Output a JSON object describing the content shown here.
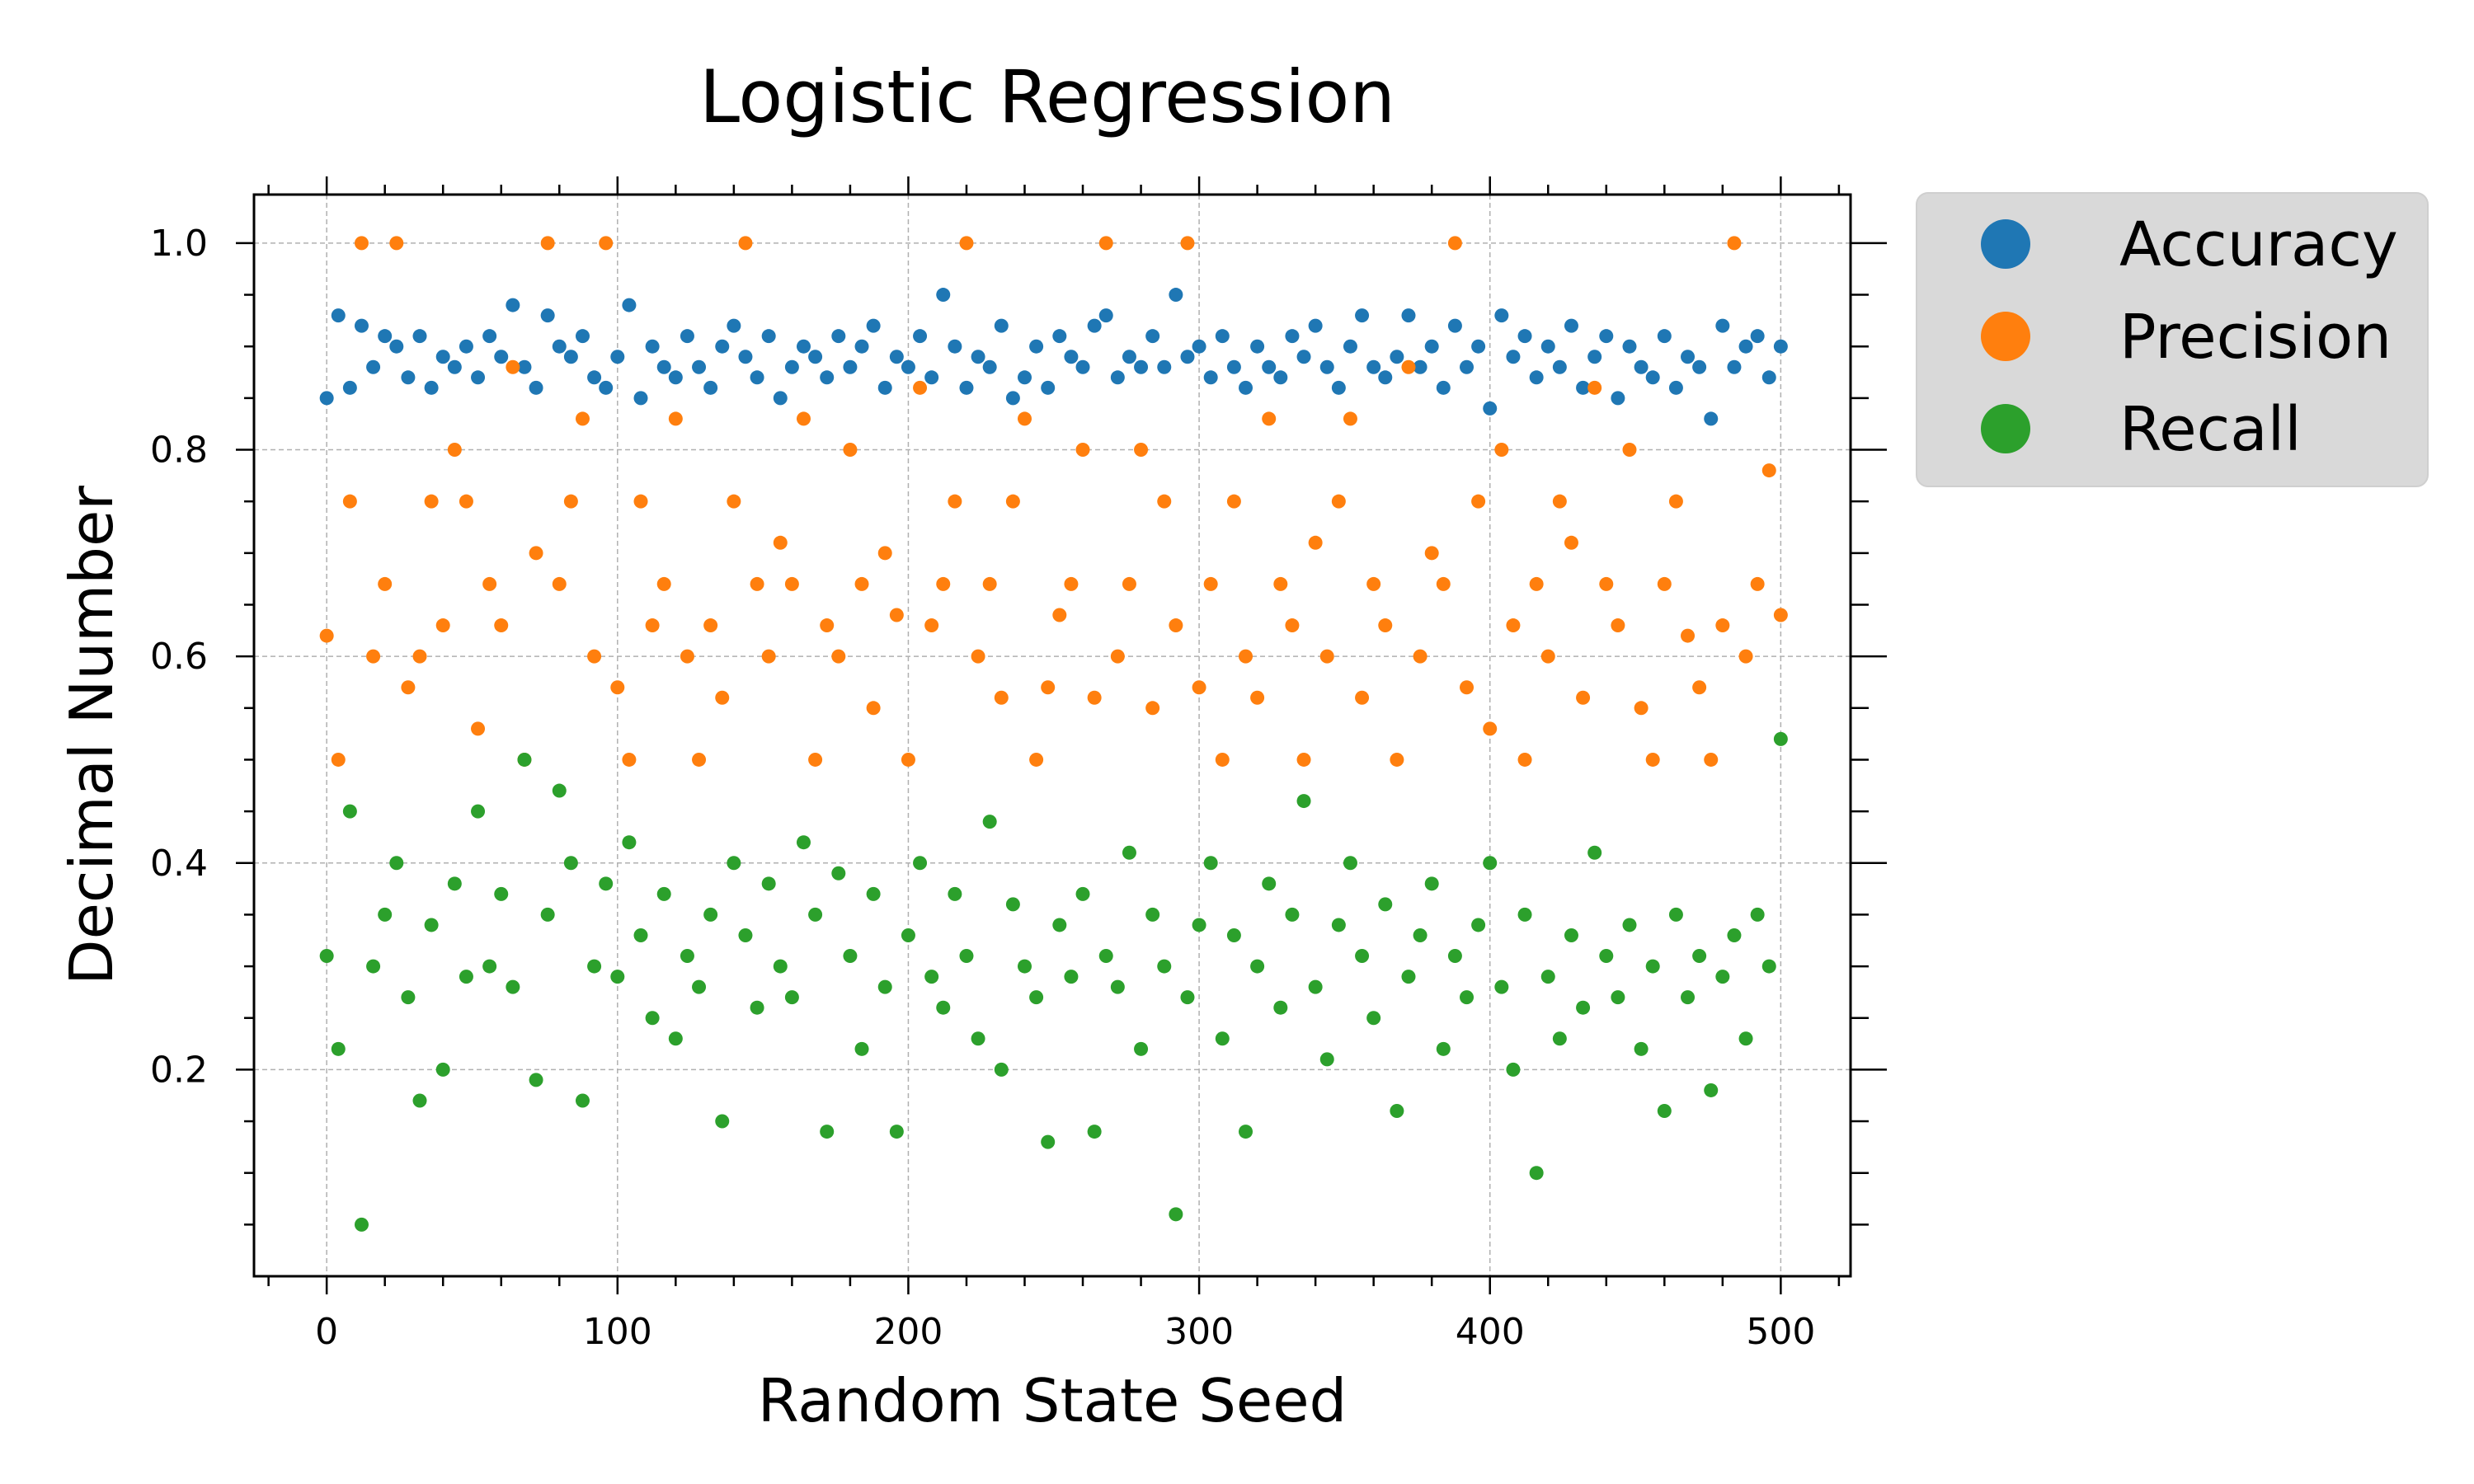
{
  "chart_data": {
    "type": "scatter",
    "title": "Logistic Regression",
    "xlabel": "Random State Seed",
    "ylabel": "Decimal Number",
    "xlim": [
      -25,
      524
    ],
    "ylim": [
      0.0,
      1.047
    ],
    "x_ticks": [
      0,
      100,
      200,
      300,
      400,
      500
    ],
    "x_tick_labels": [
      "0",
      "100",
      "200",
      "300",
      "400",
      "500"
    ],
    "y_ticks": [
      0.2,
      0.4,
      0.6,
      0.8,
      1.0
    ],
    "y_tick_labels": [
      "0.2",
      "0.4",
      "0.6",
      "0.8",
      "1.0"
    ],
    "grid": true,
    "legend_position": "outside-right-top",
    "x": [
      0,
      4,
      8,
      12,
      16,
      20,
      24,
      28,
      32,
      36,
      40,
      44,
      48,
      52,
      56,
      60,
      64,
      68,
      72,
      76,
      80,
      84,
      88,
      92,
      96,
      100,
      104,
      108,
      112,
      116,
      120,
      124,
      128,
      132,
      136,
      140,
      144,
      148,
      152,
      156,
      160,
      164,
      168,
      172,
      176,
      180,
      184,
      188,
      192,
      196,
      200,
      204,
      208,
      212,
      216,
      220,
      224,
      228,
      232,
      236,
      240,
      244,
      248,
      252,
      256,
      260,
      264,
      268,
      272,
      276,
      280,
      284,
      288,
      292,
      296,
      300,
      304,
      308,
      312,
      316,
      320,
      324,
      328,
      332,
      336,
      340,
      344,
      348,
      352,
      356,
      360,
      364,
      368,
      372,
      376,
      380,
      384,
      388,
      392,
      396,
      400,
      404,
      408,
      412,
      416,
      420,
      424,
      428,
      432,
      436,
      440,
      444,
      448,
      452,
      456,
      460,
      464,
      468,
      472,
      476,
      480,
      484,
      488,
      492,
      496,
      500
    ],
    "series": [
      {
        "name": "Accuracy",
        "color": "#1f77b4",
        "values": [
          0.85,
          0.93,
          0.86,
          0.92,
          0.88,
          0.91,
          0.9,
          0.87,
          0.91,
          0.86,
          0.89,
          0.88,
          0.9,
          0.87,
          0.91,
          0.89,
          0.94,
          0.88,
          0.86,
          0.93,
          0.9,
          0.89,
          0.91,
          0.87,
          0.86,
          0.89,
          0.94,
          0.85,
          0.9,
          0.88,
          0.87,
          0.91,
          0.88,
          0.86,
          0.9,
          0.92,
          0.89,
          0.87,
          0.91,
          0.85,
          0.88,
          0.9,
          0.89,
          0.87,
          0.91,
          0.88,
          0.9,
          0.92,
          0.86,
          0.89,
          0.88,
          0.91,
          0.87,
          0.95,
          0.9,
          0.86,
          0.89,
          0.88,
          0.92,
          0.85,
          0.87,
          0.9,
          0.86,
          0.91,
          0.89,
          0.88,
          0.92,
          0.93,
          0.87,
          0.89,
          0.88,
          0.91,
          0.88,
          0.95,
          0.89,
          0.9,
          0.87,
          0.91,
          0.88,
          0.86,
          0.9,
          0.88,
          0.87,
          0.91,
          0.89,
          0.92,
          0.88,
          0.86,
          0.9,
          0.93,
          0.88,
          0.87,
          0.89,
          0.93,
          0.88,
          0.9,
          0.86,
          0.92,
          0.88,
          0.9,
          0.84,
          0.93,
          0.89,
          0.91,
          0.87,
          0.9,
          0.88,
          0.92,
          0.86,
          0.89,
          0.91,
          0.85,
          0.9,
          0.88,
          0.87,
          0.91,
          0.86,
          0.89,
          0.88,
          0.83,
          0.92,
          0.88,
          0.9,
          0.91,
          0.87,
          0.9
        ]
      },
      {
        "name": "Precision",
        "color": "#ff7f0e",
        "values": [
          0.62,
          0.5,
          0.75,
          1.0,
          0.6,
          0.67,
          1.0,
          0.57,
          0.6,
          0.75,
          0.63,
          0.8,
          0.75,
          0.53,
          0.67,
          0.63,
          0.88,
          0.5,
          0.7,
          1.0,
          0.67,
          0.75,
          0.83,
          0.6,
          1.0,
          0.57,
          0.5,
          0.75,
          0.63,
          0.67,
          0.83,
          0.6,
          0.5,
          0.63,
          0.56,
          0.75,
          1.0,
          0.67,
          0.6,
          0.71,
          0.67,
          0.83,
          0.5,
          0.63,
          0.6,
          0.8,
          0.67,
          0.55,
          0.7,
          0.64,
          0.5,
          0.86,
          0.63,
          0.67,
          0.75,
          1.0,
          0.6,
          0.67,
          0.56,
          0.75,
          0.83,
          0.5,
          0.57,
          0.64,
          0.67,
          0.8,
          0.56,
          1.0,
          0.6,
          0.67,
          0.8,
          0.55,
          0.75,
          0.63,
          1.0,
          0.57,
          0.67,
          0.5,
          0.75,
          0.6,
          0.56,
          0.83,
          0.67,
          0.63,
          0.5,
          0.71,
          0.6,
          0.75,
          0.83,
          0.56,
          0.67,
          0.63,
          0.5,
          0.88,
          0.6,
          0.7,
          0.67,
          1.0,
          0.57,
          0.75,
          0.53,
          0.8,
          0.63,
          0.5,
          0.67,
          0.6,
          0.75,
          0.71,
          0.56,
          0.86,
          0.67,
          0.63,
          0.8,
          0.55,
          0.5,
          0.67,
          0.75,
          0.62,
          0.57,
          0.5,
          0.63,
          1.0,
          0.6,
          0.67,
          0.78,
          0.64
        ]
      },
      {
        "name": "Recall",
        "color": "#2ca02c",
        "values": [
          0.31,
          0.22,
          0.45,
          0.05,
          0.3,
          0.35,
          0.4,
          0.27,
          0.17,
          0.34,
          0.2,
          0.38,
          0.29,
          0.45,
          0.3,
          0.37,
          0.28,
          0.5,
          0.19,
          0.35,
          0.47,
          0.4,
          0.17,
          0.3,
          0.38,
          0.29,
          0.42,
          0.33,
          0.25,
          0.37,
          0.23,
          0.31,
          0.28,
          0.35,
          0.15,
          0.4,
          0.33,
          0.26,
          0.38,
          0.3,
          0.27,
          0.42,
          0.35,
          0.14,
          0.39,
          0.31,
          0.22,
          0.37,
          0.28,
          0.14,
          0.33,
          0.4,
          0.29,
          0.26,
          0.37,
          0.31,
          0.23,
          0.44,
          0.2,
          0.36,
          0.3,
          0.27,
          0.13,
          0.34,
          0.29,
          0.37,
          0.14,
          0.31,
          0.28,
          0.41,
          0.22,
          0.35,
          0.3,
          0.06,
          0.27,
          0.34,
          0.4,
          0.23,
          0.33,
          0.14,
          0.3,
          0.38,
          0.26,
          0.35,
          0.46,
          0.28,
          0.21,
          0.34,
          0.4,
          0.31,
          0.25,
          0.36,
          0.16,
          0.29,
          0.33,
          0.38,
          0.22,
          0.31,
          0.27,
          0.34,
          0.4,
          0.28,
          0.2,
          0.35,
          0.1,
          0.29,
          0.23,
          0.33,
          0.26,
          0.41,
          0.31,
          0.27,
          0.34,
          0.22,
          0.3,
          0.16,
          0.35,
          0.27,
          0.31,
          0.18,
          0.29,
          0.33,
          0.23,
          0.35,
          0.3,
          0.52
        ]
      }
    ]
  }
}
